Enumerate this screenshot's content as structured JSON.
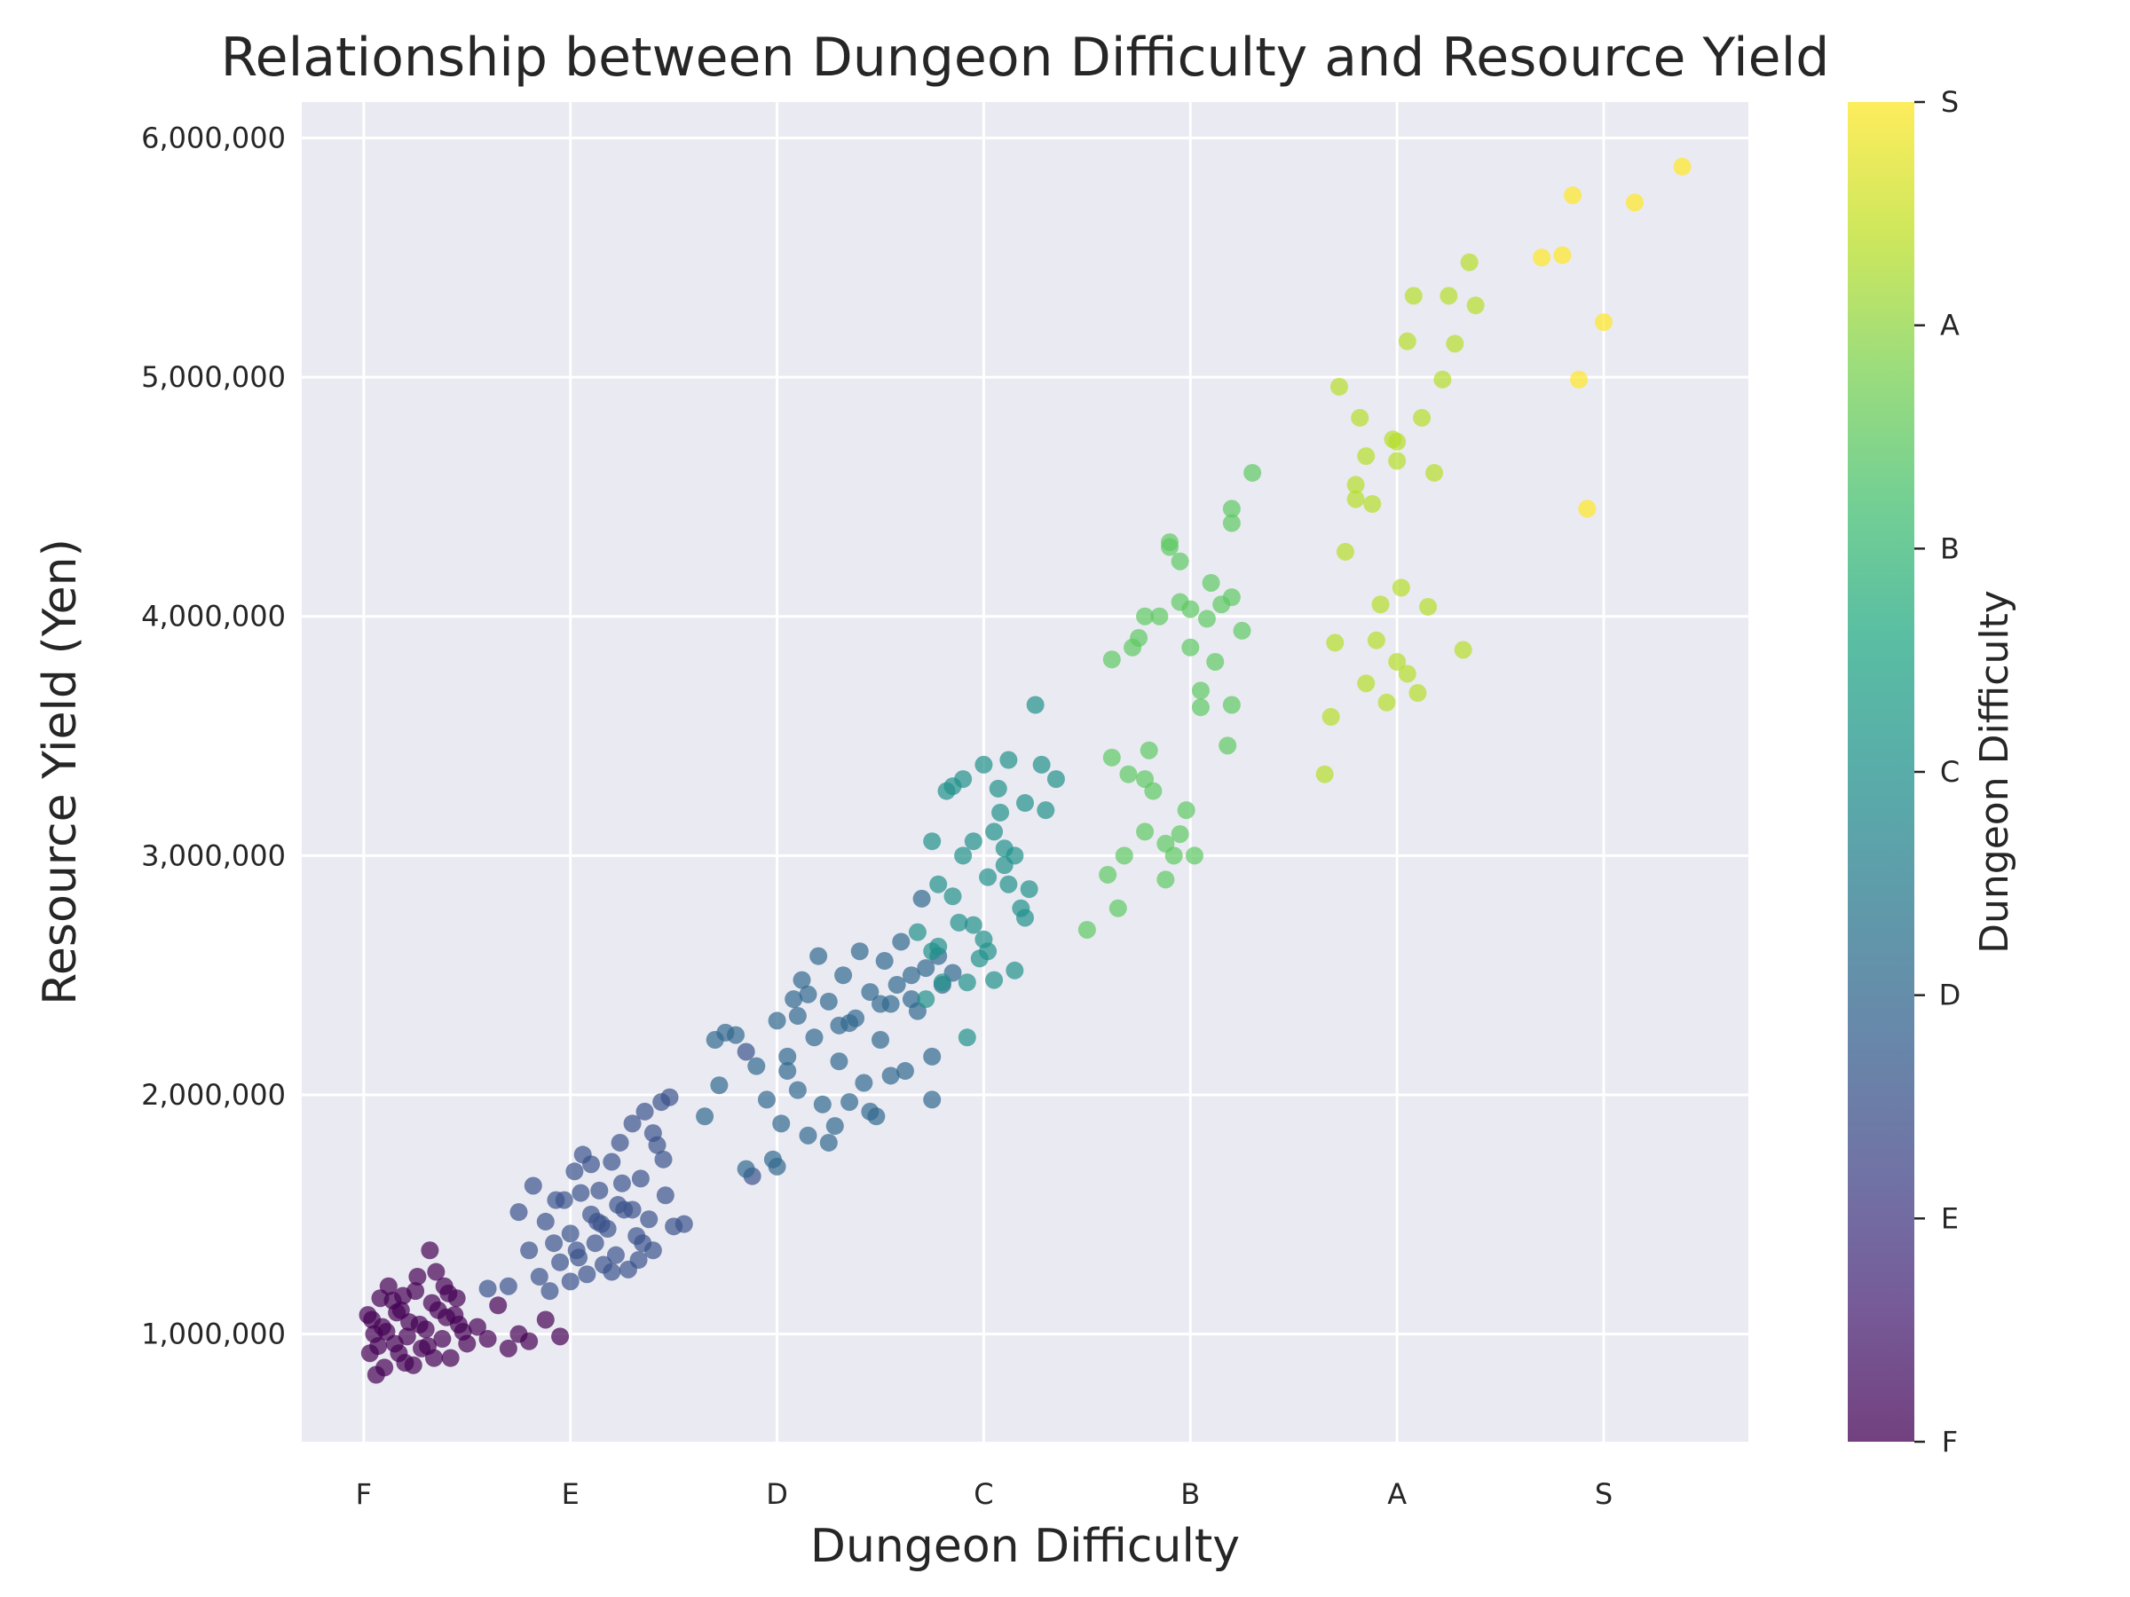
{
  "chart_data": {
    "type": "scatter",
    "title": "Relationship between Dungeon Difficulty and Resource Yield",
    "xlabel": "Dungeon Difficulty",
    "ylabel": "Resource Yield (Yen)",
    "x_categories": [
      "F",
      "E",
      "D",
      "C",
      "B",
      "A",
      "S"
    ],
    "xlim": [
      -0.3,
      6.7
    ],
    "ylim": [
      550000,
      6150000
    ],
    "y_ticks": [
      1000000,
      2000000,
      3000000,
      4000000,
      5000000,
      6000000
    ],
    "y_tick_labels": [
      "1,000,000",
      "2,000,000",
      "3,000,000",
      "4,000,000",
      "5,000,000",
      "6,000,000"
    ],
    "grid": true,
    "colorbar": {
      "label": "Dungeon Difficulty",
      "tick_labels": [
        "F",
        "E",
        "D",
        "C",
        "B",
        "A",
        "S"
      ],
      "colormap": "viridis"
    },
    "series": [
      {
        "rank": "F",
        "color": "#440154",
        "points": [
          [
            0.02,
            1080000
          ],
          [
            0.05,
            1000000
          ],
          [
            0.08,
            1150000
          ],
          [
            0.03,
            920000
          ],
          [
            0.1,
            860000
          ],
          [
            0.12,
            1200000
          ],
          [
            0.15,
            960000
          ],
          [
            0.18,
            1100000
          ],
          [
            0.2,
            880000
          ],
          [
            0.22,
            1050000
          ],
          [
            0.25,
            1180000
          ],
          [
            0.28,
            940000
          ],
          [
            0.3,
            1020000
          ],
          [
            0.33,
            1130000
          ],
          [
            0.35,
            1260000
          ],
          [
            0.38,
            980000
          ],
          [
            0.4,
            1070000
          ],
          [
            0.42,
            900000
          ],
          [
            0.45,
            1150000
          ],
          [
            0.48,
            1010000
          ],
          [
            0.06,
            830000
          ],
          [
            0.09,
            1030000
          ],
          [
            0.14,
            1140000
          ],
          [
            0.17,
            920000
          ],
          [
            0.21,
            990000
          ],
          [
            0.26,
            1240000
          ],
          [
            0.31,
            950000
          ],
          [
            0.36,
            1100000
          ],
          [
            0.41,
            1170000
          ],
          [
            0.44,
            1080000
          ],
          [
            0.5,
            960000
          ],
          [
            0.55,
            1030000
          ],
          [
            0.6,
            980000
          ],
          [
            0.65,
            1120000
          ],
          [
            0.7,
            940000
          ],
          [
            0.75,
            1000000
          ],
          [
            0.8,
            970000
          ],
          [
            0.88,
            1060000
          ],
          [
            0.95,
            990000
          ],
          [
            0.32,
            1350000
          ],
          [
            0.04,
            1060000
          ],
          [
            0.07,
            950000
          ],
          [
            0.11,
            1010000
          ],
          [
            0.16,
            1090000
          ],
          [
            0.19,
            1160000
          ],
          [
            0.24,
            870000
          ],
          [
            0.27,
            1040000
          ],
          [
            0.34,
            900000
          ],
          [
            0.39,
            1200000
          ],
          [
            0.46,
            1040000
          ]
        ]
      },
      {
        "rank": "E",
        "color": "#3b528b",
        "points": [
          [
            0.6,
            1190000
          ],
          [
            0.7,
            1200000
          ],
          [
            0.75,
            1510000
          ],
          [
            0.8,
            1350000
          ],
          [
            0.82,
            1620000
          ],
          [
            0.85,
            1240000
          ],
          [
            0.88,
            1470000
          ],
          [
            0.9,
            1180000
          ],
          [
            0.92,
            1380000
          ],
          [
            0.95,
            1300000
          ],
          [
            0.97,
            1560000
          ],
          [
            1.0,
            1420000
          ],
          [
            1.02,
            1680000
          ],
          [
            1.04,
            1320000
          ],
          [
            1.06,
            1750000
          ],
          [
            1.08,
            1250000
          ],
          [
            1.1,
            1500000
          ],
          [
            1.12,
            1380000
          ],
          [
            1.14,
            1600000
          ],
          [
            1.16,
            1290000
          ],
          [
            1.18,
            1440000
          ],
          [
            1.2,
            1720000
          ],
          [
            1.22,
            1330000
          ],
          [
            1.24,
            1800000
          ],
          [
            1.26,
            1520000
          ],
          [
            1.28,
            1270000
          ],
          [
            1.3,
            1880000
          ],
          [
            1.32,
            1410000
          ],
          [
            1.34,
            1650000
          ],
          [
            1.36,
            1930000
          ],
          [
            1.38,
            1480000
          ],
          [
            1.4,
            1350000
          ],
          [
            1.42,
            1790000
          ],
          [
            1.44,
            1970000
          ],
          [
            1.46,
            1580000
          ],
          [
            1.48,
            1990000
          ],
          [
            1.5,
            1450000
          ],
          [
            1.55,
            1460000
          ],
          [
            1.0,
            1220000
          ],
          [
            1.05,
            1590000
          ],
          [
            1.1,
            1710000
          ],
          [
            1.15,
            1460000
          ],
          [
            1.2,
            1260000
          ],
          [
            1.25,
            1630000
          ],
          [
            1.3,
            1520000
          ],
          [
            1.35,
            1380000
          ],
          [
            1.4,
            1840000
          ],
          [
            1.45,
            1730000
          ],
          [
            0.93,
            1560000
          ],
          [
            1.03,
            1350000
          ],
          [
            1.13,
            1470000
          ],
          [
            1.23,
            1540000
          ],
          [
            1.33,
            1310000
          ],
          [
            1.85,
            2180000
          ],
          [
            1.88,
            1660000
          ]
        ]
      },
      {
        "rank": "D",
        "color": "#31688e",
        "points": [
          [
            1.65,
            1910000
          ],
          [
            1.72,
            2040000
          ],
          [
            1.8,
            2250000
          ],
          [
            1.85,
            1690000
          ],
          [
            1.9,
            2120000
          ],
          [
            1.95,
            1980000
          ],
          [
            2.0,
            2310000
          ],
          [
            2.02,
            1880000
          ],
          [
            2.05,
            2100000
          ],
          [
            2.08,
            2400000
          ],
          [
            2.1,
            2020000
          ],
          [
            2.12,
            2480000
          ],
          [
            2.15,
            1830000
          ],
          [
            2.18,
            2240000
          ],
          [
            2.2,
            2580000
          ],
          [
            2.22,
            1960000
          ],
          [
            2.25,
            2390000
          ],
          [
            2.28,
            1870000
          ],
          [
            2.3,
            2140000
          ],
          [
            2.32,
            2500000
          ],
          [
            2.35,
            1970000
          ],
          [
            2.38,
            2320000
          ],
          [
            2.4,
            2600000
          ],
          [
            2.42,
            2050000
          ],
          [
            2.45,
            2430000
          ],
          [
            2.48,
            1910000
          ],
          [
            2.5,
            2230000
          ],
          [
            2.52,
            2560000
          ],
          [
            2.55,
            2080000
          ],
          [
            2.58,
            2460000
          ],
          [
            2.6,
            2640000
          ],
          [
            2.62,
            2100000
          ],
          [
            2.65,
            2500000
          ],
          [
            2.68,
            2350000
          ],
          [
            2.7,
            2820000
          ],
          [
            2.72,
            2530000
          ],
          [
            2.75,
            2160000
          ],
          [
            2.78,
            2580000
          ],
          [
            2.8,
            2460000
          ],
          [
            2.85,
            2510000
          ],
          [
            1.7,
            2230000
          ],
          [
            1.75,
            2260000
          ],
          [
            1.98,
            1730000
          ],
          [
            2.05,
            2160000
          ],
          [
            2.15,
            2420000
          ],
          [
            2.25,
            1800000
          ],
          [
            2.35,
            2300000
          ],
          [
            2.45,
            1930000
          ],
          [
            2.55,
            2380000
          ],
          [
            2.65,
            2400000
          ],
          [
            2.75,
            1980000
          ],
          [
            2.0,
            1700000
          ],
          [
            2.1,
            2330000
          ],
          [
            2.3,
            2290000
          ],
          [
            2.5,
            2380000
          ]
        ]
      },
      {
        "rank": "C",
        "color": "#21918c",
        "points": [
          [
            2.68,
            2680000
          ],
          [
            2.72,
            2400000
          ],
          [
            2.75,
            3060000
          ],
          [
            2.78,
            2880000
          ],
          [
            2.8,
            2470000
          ],
          [
            2.85,
            3290000
          ],
          [
            2.88,
            2720000
          ],
          [
            2.9,
            3000000
          ],
          [
            2.92,
            2240000
          ],
          [
            2.95,
            3060000
          ],
          [
            2.98,
            2570000
          ],
          [
            3.0,
            3380000
          ],
          [
            3.02,
            2910000
          ],
          [
            3.05,
            2480000
          ],
          [
            3.08,
            3180000
          ],
          [
            3.1,
            2960000
          ],
          [
            3.12,
            3400000
          ],
          [
            3.15,
            2520000
          ],
          [
            3.18,
            2780000
          ],
          [
            3.2,
            3220000
          ],
          [
            3.25,
            3630000
          ],
          [
            3.28,
            3380000
          ],
          [
            3.3,
            3190000
          ],
          [
            3.35,
            3320000
          ],
          [
            3.0,
            2650000
          ],
          [
            3.05,
            3100000
          ],
          [
            2.95,
            2710000
          ],
          [
            2.85,
            2830000
          ],
          [
            2.78,
            2620000
          ],
          [
            2.9,
            3320000
          ],
          [
            3.1,
            3030000
          ],
          [
            3.15,
            3000000
          ],
          [
            3.22,
            2860000
          ],
          [
            3.02,
            2600000
          ],
          [
            2.92,
            2470000
          ],
          [
            2.82,
            3270000
          ],
          [
            3.07,
            3280000
          ],
          [
            2.75,
            2600000
          ],
          [
            3.12,
            2880000
          ],
          [
            3.2,
            2740000
          ]
        ]
      },
      {
        "rank": "B",
        "color": "#5ec962",
        "points": [
          [
            3.5,
            2690000
          ],
          [
            3.6,
            2920000
          ],
          [
            3.62,
            3410000
          ],
          [
            3.65,
            2780000
          ],
          [
            3.68,
            3000000
          ],
          [
            3.7,
            3340000
          ],
          [
            3.72,
            3870000
          ],
          [
            3.75,
            3910000
          ],
          [
            3.78,
            3100000
          ],
          [
            3.8,
            3440000
          ],
          [
            3.82,
            3270000
          ],
          [
            3.85,
            4000000
          ],
          [
            3.88,
            3050000
          ],
          [
            3.9,
            4310000
          ],
          [
            3.92,
            3000000
          ],
          [
            3.95,
            4230000
          ],
          [
            3.98,
            3190000
          ],
          [
            4.0,
            4030000
          ],
          [
            4.02,
            3000000
          ],
          [
            4.05,
            3620000
          ],
          [
            4.08,
            3990000
          ],
          [
            4.1,
            4140000
          ],
          [
            4.12,
            3810000
          ],
          [
            4.15,
            4050000
          ],
          [
            4.18,
            3460000
          ],
          [
            4.2,
            4450000
          ],
          [
            4.25,
            3940000
          ],
          [
            4.3,
            4600000
          ],
          [
            3.78,
            4000000
          ],
          [
            3.95,
            4060000
          ],
          [
            4.0,
            3870000
          ],
          [
            4.05,
            3690000
          ],
          [
            3.9,
            4290000
          ],
          [
            3.95,
            3090000
          ],
          [
            4.2,
            4080000
          ],
          [
            4.2,
            3630000
          ],
          [
            3.62,
            3820000
          ],
          [
            3.78,
            3320000
          ],
          [
            3.88,
            2900000
          ],
          [
            4.2,
            4390000
          ]
        ]
      },
      {
        "rank": "A",
        "color": "#b5de2b",
        "points": [
          [
            4.65,
            3340000
          ],
          [
            4.68,
            3580000
          ],
          [
            4.7,
            3890000
          ],
          [
            4.72,
            4960000
          ],
          [
            4.75,
            4270000
          ],
          [
            4.8,
            4550000
          ],
          [
            4.82,
            4830000
          ],
          [
            4.85,
            3720000
          ],
          [
            4.88,
            4470000
          ],
          [
            4.9,
            3900000
          ],
          [
            4.92,
            4050000
          ],
          [
            4.95,
            3640000
          ],
          [
            4.98,
            4740000
          ],
          [
            5.0,
            3810000
          ],
          [
            5.02,
            4120000
          ],
          [
            5.05,
            5150000
          ],
          [
            5.08,
            5340000
          ],
          [
            5.1,
            3680000
          ],
          [
            5.12,
            4830000
          ],
          [
            5.15,
            4040000
          ],
          [
            5.18,
            4600000
          ],
          [
            5.22,
            4990000
          ],
          [
            5.25,
            5340000
          ],
          [
            5.28,
            5140000
          ],
          [
            5.32,
            3860000
          ],
          [
            5.35,
            5480000
          ],
          [
            5.38,
            5300000
          ],
          [
            5.0,
            4730000
          ],
          [
            4.8,
            4490000
          ],
          [
            4.85,
            4670000
          ],
          [
            5.05,
            3760000
          ],
          [
            5.0,
            4650000
          ]
        ]
      },
      {
        "rank": "S",
        "color": "#fde725",
        "points": [
          [
            5.7,
            5500000
          ],
          [
            5.8,
            5510000
          ],
          [
            5.85,
            5760000
          ],
          [
            5.88,
            4990000
          ],
          [
            5.92,
            4450000
          ],
          [
            6.0,
            5230000
          ],
          [
            6.15,
            5730000
          ],
          [
            6.38,
            5880000
          ]
        ]
      }
    ]
  }
}
